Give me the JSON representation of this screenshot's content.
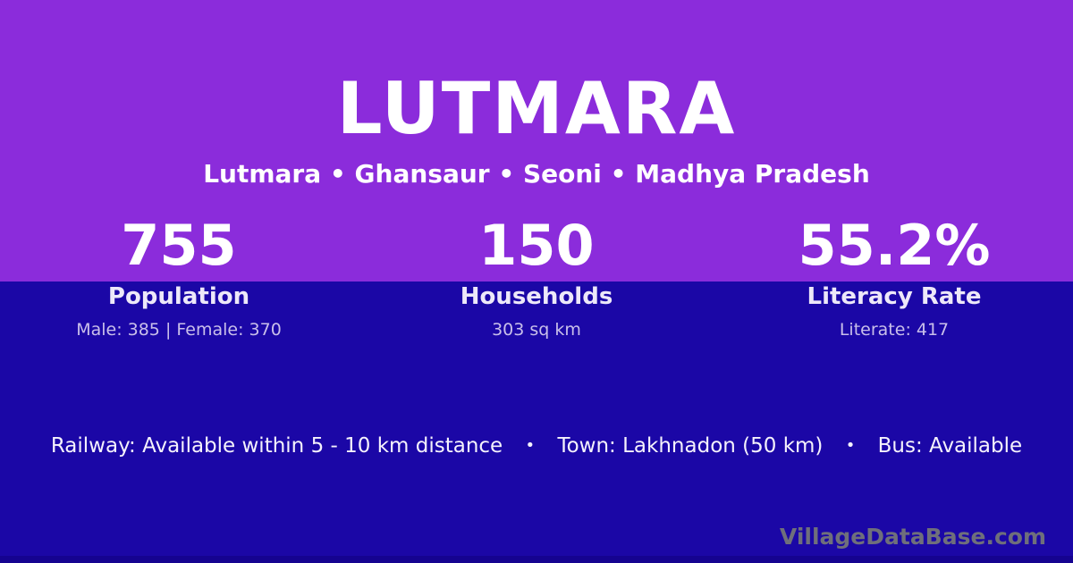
{
  "header": {
    "title": "LUTMARA",
    "breadcrumb": "Lutmara • Ghansaur • Seoni • Madhya Pradesh"
  },
  "stats": [
    {
      "value": "755",
      "label": "Population",
      "detail": "Male: 385 | Female: 370"
    },
    {
      "value": "150",
      "label": "Households",
      "detail": "303 sq km"
    },
    {
      "value": "55.2%",
      "label": "Literacy Rate",
      "detail": "Literate: 417"
    }
  ],
  "info_bar": {
    "items": [
      "Railway: Available within 5 - 10 km distance",
      "Town: Lakhnadon (50 km)",
      "Bus: Available"
    ],
    "separator": "•"
  },
  "footer": {
    "watermark": "VillageDataBase.com"
  },
  "colors": {
    "background_top": "#8B2CDB",
    "background_bottom": "#1B07A6",
    "footer_strip": "#150390",
    "text_primary": "#FFFFFF",
    "text_muted": "#C9BFEA",
    "watermark": "#6F6F7B"
  }
}
